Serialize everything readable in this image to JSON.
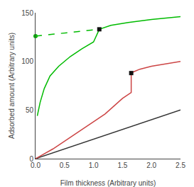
{
  "chart_data": {
    "type": "line",
    "xlabel": "Film thickness (Arbitrary units)",
    "ylabel": "Adsorbed amount (Arbitrary units)",
    "xlim": [
      0.0,
      2.5
    ],
    "ylim": [
      0,
      150
    ],
    "xticks": [
      {
        "value": 0.0,
        "label": "0.0"
      },
      0.5,
      {
        "value": 1.0,
        "label": "1.0"
      },
      1.5,
      {
        "value": 2.0,
        "label": "2.0"
      },
      2.5
    ],
    "yticks": [
      0,
      50,
      100,
      150
    ],
    "grid": false,
    "series": [
      {
        "type": "line",
        "color": "#333333",
        "line_style": "solid",
        "x": [
          0.0,
          2.5
        ],
        "values": [
          0.0,
          50.0
        ]
      },
      {
        "type": "line",
        "color": "#00bb00",
        "line_style": "solid",
        "x": [
          0.03,
          0.08,
          0.15,
          0.25,
          0.4,
          0.6,
          0.8,
          1.0,
          1.1,
          1.3,
          1.6,
          2.0,
          2.5
        ],
        "values": [
          44,
          58,
          72,
          85,
          95,
          105,
          113,
          120,
          133,
          137,
          140,
          143,
          146
        ]
      },
      {
        "type": "line",
        "color": "#00bb00",
        "line_style": "dashed",
        "x": [
          0.0,
          1.1
        ],
        "values": [
          126,
          133
        ]
      },
      {
        "type": "scatter",
        "color": "#00bb00",
        "marker": "circle",
        "x": [
          0.0
        ],
        "values": [
          126
        ]
      },
      {
        "type": "scatter",
        "color": "#111111",
        "marker": "square",
        "x": [
          1.1
        ],
        "values": [
          133
        ]
      },
      {
        "type": "line",
        "color": "#cc4444",
        "line_style": "solid",
        "x": [
          0.0,
          0.3,
          0.6,
          0.9,
          1.2,
          1.5,
          1.65,
          1.65,
          1.68,
          1.8,
          2.0,
          2.5
        ],
        "values": [
          0.0,
          10,
          22,
          34,
          46,
          62,
          68,
          88,
          89,
          92,
          95,
          100
        ]
      },
      {
        "type": "scatter",
        "color": "#111111",
        "marker": "square",
        "x": [
          1.65
        ],
        "values": [
          88
        ]
      }
    ]
  }
}
